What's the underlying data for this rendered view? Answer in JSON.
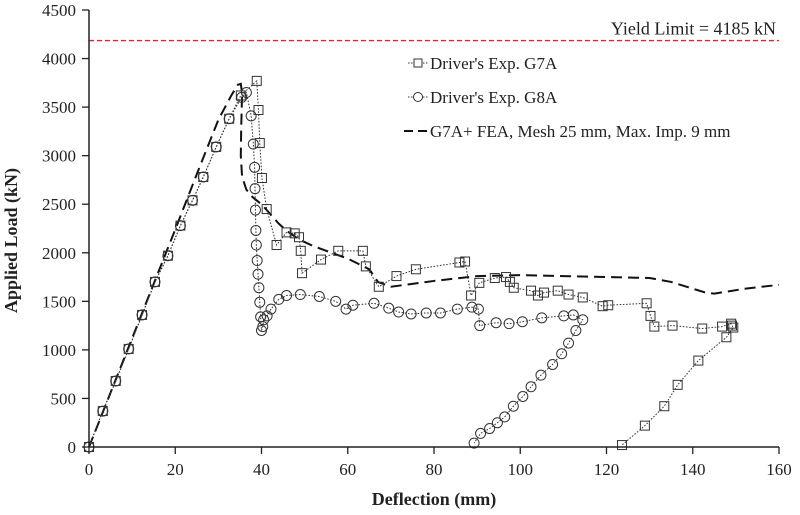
{
  "chart_data": {
    "type": "line",
    "title": "",
    "xlabel": "Deflection (mm)",
    "ylabel": "Applied Load (kN)",
    "xlim": [
      0,
      160
    ],
    "ylim": [
      0,
      4500
    ],
    "xticks": [
      0,
      20,
      40,
      60,
      80,
      100,
      120,
      140,
      160
    ],
    "yticks": [
      0,
      500,
      1000,
      1500,
      2000,
      2500,
      3000,
      3500,
      4000,
      4500
    ],
    "grid": false,
    "legend_position": "top-right",
    "reference_line": {
      "label": "Yield Limit = 4185 kN",
      "y": 4185,
      "color": "#e8202a",
      "style": "dashed"
    },
    "series": [
      {
        "name": "Driver's Exp. G7A",
        "marker": "square",
        "line": "dotted",
        "color": "#333333",
        "x": [
          0,
          3.2,
          6.2,
          9.2,
          12.3,
          15.3,
          18.3,
          21.2,
          24,
          26.5,
          29.5,
          32.5,
          35.2,
          38.9,
          39.3,
          39.6,
          40.1,
          41.2,
          43.5,
          45.8,
          47.7,
          48.7,
          49.1,
          49.4,
          53.8,
          57.8,
          63.5,
          64.2,
          67.2,
          71.3,
          75.8,
          85.9,
          87.2,
          88.6,
          90.5,
          94.1,
          96.7,
          97.6,
          98.5,
          102.5,
          104.1,
          105.5,
          108.7,
          111.2,
          114.5,
          119.1,
          120.4,
          129.3,
          130.2,
          131.1,
          135.3,
          142.2,
          146.8,
          148.9,
          149.1,
          149.4,
          147.8,
          141.3,
          136.5,
          133.4,
          128.9,
          123.6
        ],
        "y": [
          0,
          370,
          680,
          1010,
          1360,
          1700,
          1970,
          2280,
          2540,
          2780,
          3090,
          3380,
          3620,
          3770,
          3470,
          3130,
          2770,
          2450,
          2080,
          2210,
          2200,
          2160,
          2020,
          1790,
          1930,
          2020,
          2020,
          1860,
          1650,
          1760,
          1830,
          1900,
          1910,
          1560,
          1690,
          1740,
          1750,
          1700,
          1640,
          1610,
          1560,
          1590,
          1610,
          1570,
          1540,
          1450,
          1460,
          1480,
          1350,
          1240,
          1250,
          1220,
          1240,
          1270,
          1250,
          1230,
          1130,
          890,
          640,
          420,
          220,
          20
        ]
      },
      {
        "name": "Driver's Exp. G8A",
        "marker": "circle",
        "line": "dotted",
        "color": "#333333",
        "x": [
          0,
          3.2,
          6.2,
          9.2,
          12.3,
          15.3,
          18.3,
          21.2,
          24,
          26.5,
          29.5,
          32.5,
          35.4,
          36.5,
          37.6,
          38.1,
          38.4,
          38.5,
          38.6,
          38.7,
          38.8,
          39.0,
          39.2,
          39.4,
          39.6,
          39.8,
          40.0,
          40.3,
          40.5,
          41.3,
          42.2,
          44.0,
          45.8,
          49.0,
          53.4,
          57.2,
          59.6,
          61.2,
          66.1,
          69.5,
          71.8,
          74.7,
          78.2,
          81.5,
          85.4,
          88.8,
          90.3,
          90.6,
          94.4,
          97.4,
          100.5,
          105.0,
          110.1,
          112.3,
          114.5,
          112.9,
          111.2,
          109.6,
          107.5,
          104.8,
          102.5,
          100.6,
          98.4,
          96.4,
          94.7,
          92.9,
          90.8,
          89.3
        ],
        "y": [
          0,
          370,
          680,
          1010,
          1360,
          1700,
          1970,
          2280,
          2540,
          2780,
          3090,
          3380,
          3600,
          3650,
          3410,
          3120,
          2880,
          2660,
          2440,
          2230,
          2080,
          1920,
          1780,
          1640,
          1490,
          1340,
          1200,
          1240,
          1310,
          1350,
          1420,
          1520,
          1560,
          1570,
          1550,
          1500,
          1420,
          1460,
          1480,
          1430,
          1390,
          1370,
          1380,
          1380,
          1420,
          1440,
          1420,
          1250,
          1280,
          1270,
          1290,
          1330,
          1350,
          1360,
          1310,
          1200,
          1070,
          960,
          850,
          740,
          620,
          520,
          420,
          310,
          250,
          190,
          140,
          40
        ]
      },
      {
        "name": "G7A+ FEA, Mesh 25 mm, Max. Imp. 9 mm",
        "marker": "none",
        "line": "dashed",
        "color": "#111111",
        "x": [
          0,
          5,
          10,
          15,
          20,
          25,
          30,
          33,
          34.5,
          35.2,
          35.5,
          35.3,
          35.2,
          35.5,
          36.5,
          38,
          40,
          42,
          44,
          46,
          48,
          50,
          52,
          55,
          60,
          65,
          67,
          70,
          75,
          80,
          90,
          100,
          110,
          120,
          130,
          135,
          140,
          143,
          145,
          148,
          152,
          156,
          160
        ],
        "y": [
          0,
          560,
          1120,
          1680,
          2240,
          2810,
          3370,
          3620,
          3730,
          3740,
          3640,
          3300,
          3000,
          2780,
          2650,
          2570,
          2500,
          2400,
          2300,
          2220,
          2160,
          2110,
          2070,
          2020,
          1940,
          1830,
          1700,
          1650,
          1680,
          1710,
          1760,
          1770,
          1760,
          1750,
          1740,
          1700,
          1630,
          1590,
          1580,
          1600,
          1630,
          1650,
          1670
        ]
      }
    ]
  }
}
